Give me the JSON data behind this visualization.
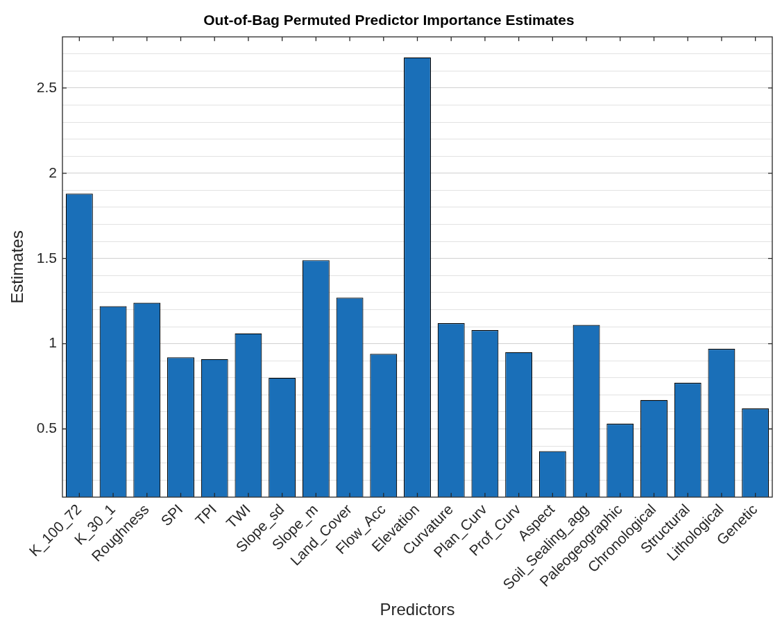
{
  "chart_data": {
    "type": "bar",
    "title": "Out-of-Bag Permuted Predictor Importance Estimates",
    "xlabel": "Predictors",
    "ylabel": "Estimates",
    "categories": [
      "K_100_72",
      "K_30_1",
      "Roughness",
      "SPI",
      "TPI",
      "TWI",
      "Slope_sd",
      "Slope_m",
      "Land_Cover",
      "Flow_Acc",
      "Elevation",
      "Curvature",
      "Plan_Curv",
      "Prof_Curv",
      "Aspect",
      "Soil_Sealing_agg",
      "Paleogeographic",
      "Chronological",
      "Structural",
      "Lithological",
      "Genetic"
    ],
    "values": [
      1.88,
      1.22,
      1.24,
      0.92,
      0.91,
      1.06,
      0.8,
      1.49,
      1.27,
      0.94,
      2.68,
      1.12,
      1.08,
      0.95,
      0.37,
      1.11,
      0.53,
      0.67,
      0.77,
      0.97,
      0.62
    ],
    "color": "#1a6fb8",
    "ylim": [
      0.1,
      2.8
    ],
    "yticks": [
      {
        "value": 0.1,
        "label": null
      },
      {
        "value": 0.2,
        "label": null
      },
      {
        "value": 0.3,
        "label": null
      },
      {
        "value": 0.4,
        "label": null
      },
      0.5,
      {
        "value": 0.6,
        "label": null
      },
      {
        "value": 0.7,
        "label": null
      },
      {
        "value": 0.8,
        "label": null
      },
      {
        "value": 0.9,
        "label": null
      },
      1,
      {
        "value": 1.1,
        "label": null
      },
      {
        "value": 1.2,
        "label": null
      },
      {
        "value": 1.3,
        "label": null
      },
      {
        "value": 1.4,
        "label": null
      },
      1.5,
      {
        "value": 1.6,
        "label": null
      },
      {
        "value": 1.7,
        "label": null
      },
      {
        "value": 1.8,
        "label": null
      },
      {
        "value": 1.9,
        "label": null
      },
      2,
      {
        "value": 2.1,
        "label": null
      },
      {
        "value": 2.2,
        "label": null
      },
      {
        "value": 2.3,
        "label": null
      },
      {
        "value": 2.4,
        "label": null
      },
      2.5,
      {
        "value": 2.6,
        "label": null
      },
      {
        "value": 2.7,
        "label": null
      },
      {
        "value": 2.8,
        "label": null
      }
    ],
    "grid": "y",
    "legend": false
  }
}
